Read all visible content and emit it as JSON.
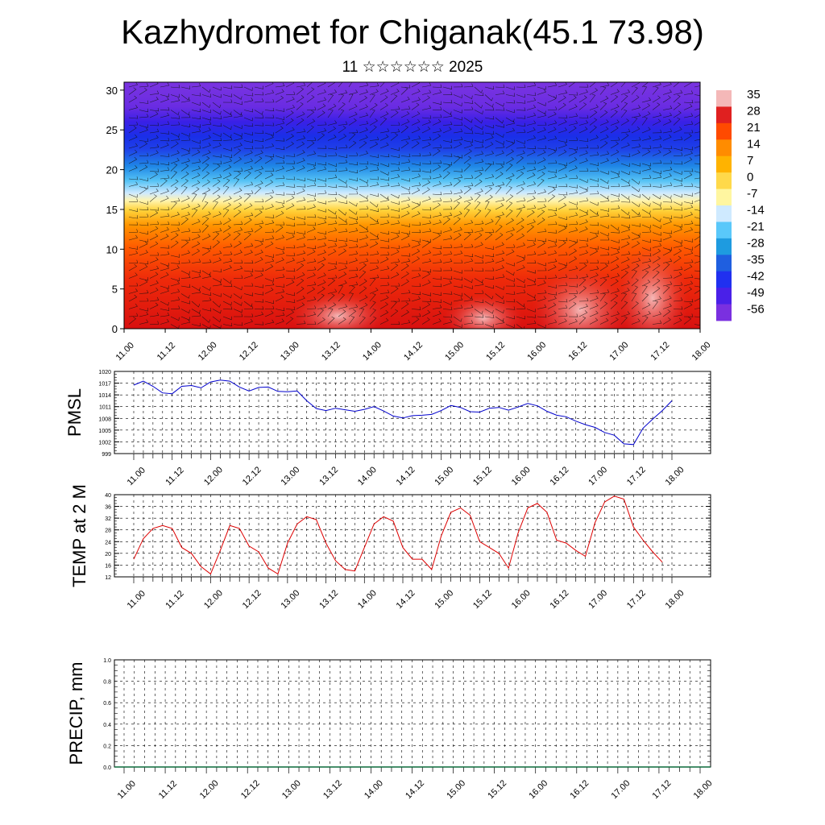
{
  "title": "Kazhydromet for Chiganak(45.1 73.98)",
  "subtitle": "11 ☆☆☆☆☆☆ 2025",
  "chart_data": [
    {
      "type": "heatmap",
      "name": "cross-section",
      "y_ticks": [
        "0",
        "5",
        "10",
        "15",
        "20",
        "25",
        "30"
      ],
      "ylim": [
        0,
        31
      ],
      "x_ticks": [
        "11.00",
        "11.12",
        "12.00",
        "12.12",
        "13.00",
        "13.12",
        "14.00",
        "14.12",
        "15.00",
        "15.12",
        "16.00",
        "16.12",
        "17.00",
        "17.12",
        "18.00"
      ],
      "colorbar_labels": [
        "35",
        "28",
        "21",
        "14",
        "7",
        "0",
        "-7",
        "-14",
        "-21",
        "-28",
        "-35",
        "-42",
        "-49",
        "-56"
      ],
      "colorbar_colors": [
        "#f4b8b8",
        "#e02020",
        "#ff4a00",
        "#ff8c00",
        "#ffb300",
        "#ffd94a",
        "#fff6a0",
        "#cfeaff",
        "#5ac8fa",
        "#1e9be0",
        "#1f5fe0",
        "#2030f0",
        "#4a20e8",
        "#7a30e0"
      ],
      "wind_barbs": true
    },
    {
      "type": "line",
      "name": "PMSL",
      "ylabel": "PMSL",
      "y_ticks": [
        "1020",
        "1017",
        "1014",
        "1011",
        "1008",
        "1005",
        "1002",
        "999"
      ],
      "ylim": [
        999,
        1020
      ],
      "x_ticks": [
        "11.00",
        "11.12",
        "12.00",
        "12.12",
        "13.00",
        "13.12",
        "14.00",
        "14.12",
        "15.00",
        "15.12",
        "16.00",
        "16.12",
        "17.00",
        "17.12",
        "18.00"
      ],
      "color": "#0000cc",
      "values": [
        1016.5,
        1017.5,
        1016.2,
        1014.5,
        1014.3,
        1016.2,
        1016.4,
        1015.8,
        1017.3,
        1017.8,
        1017.5,
        1016,
        1015,
        1015.9,
        1016,
        1014.9,
        1014.8,
        1015,
        1012.5,
        1010.5,
        1010,
        1010.6,
        1010.2,
        1009.8,
        1010.3,
        1011,
        1009.9,
        1008.6,
        1008.1,
        1008.7,
        1008.8,
        1009,
        1010,
        1011.3,
        1010.8,
        1009.7,
        1009.6,
        1010.6,
        1010.8,
        1010.1,
        1010.9,
        1011.8,
        1011.2,
        1009.8,
        1008.8,
        1008.4,
        1007.3,
        1006.4,
        1005.7,
        1004.4,
        1003.7,
        1001.5,
        1001.3,
        1005.5,
        1007.8,
        1010,
        1012.5
      ]
    },
    {
      "type": "line",
      "name": "TEMP at 2 M",
      "ylabel": "TEMP at 2 M",
      "y_ticks": [
        "40",
        "36",
        "32",
        "28",
        "24",
        "20",
        "16",
        "12"
      ],
      "ylim": [
        12,
        40
      ],
      "x_ticks": [
        "11.00",
        "11.12",
        "12.00",
        "12.12",
        "13.00",
        "13.12",
        "14.00",
        "14.12",
        "15.00",
        "15.12",
        "16.00",
        "16.12",
        "17.00",
        "17.12",
        "18.00"
      ],
      "color": "#dd0000",
      "values": [
        18,
        25,
        28.5,
        29.5,
        28.5,
        22,
        20,
        15.5,
        13,
        21,
        29.5,
        28.5,
        22.5,
        20.5,
        15,
        13,
        23.5,
        30,
        32.5,
        31.5,
        23.5,
        17.5,
        14.5,
        14,
        22,
        30,
        32.5,
        31,
        22,
        18,
        18,
        14.5,
        26,
        34,
        35.5,
        33,
        24,
        22,
        20,
        15,
        27,
        35.5,
        37,
        34,
        24.5,
        23.5,
        21,
        19,
        30.5,
        37.5,
        39.5,
        38.5,
        29,
        24.5,
        20.5,
        17
      ]
    },
    {
      "type": "bar",
      "name": "PRECIP",
      "ylabel": "PRECIP, mm",
      "y_ticks": [
        "1.0",
        "0.8",
        "0.6",
        "0.4",
        "0.2",
        "0.0"
      ],
      "ylim": [
        0,
        1
      ],
      "x_ticks": [
        "11.00",
        "11.12",
        "12.00",
        "12.12",
        "13.00",
        "13.12",
        "14.00",
        "14.12",
        "15.00",
        "15.12",
        "16.00",
        "16.12",
        "17.00",
        "17.12",
        "18.00"
      ],
      "values": []
    }
  ]
}
